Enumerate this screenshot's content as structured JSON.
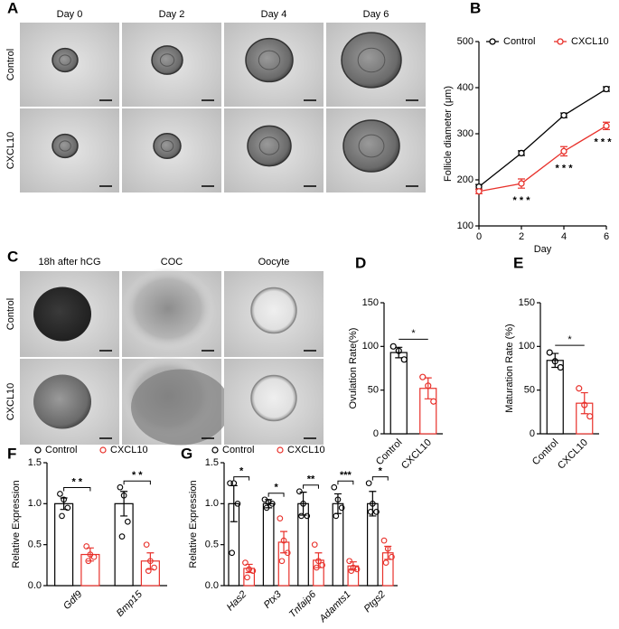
{
  "panel_labels": [
    "A",
    "B",
    "C",
    "D",
    "E",
    "F",
    "G"
  ],
  "image_panels": [
    {
      "columns": [
        "Day 0",
        "Day 2",
        "Day 4",
        "Day 6"
      ],
      "rows": [
        "Control",
        "CXCL10"
      ]
    },
    {
      "columns": [
        "18h after hCG",
        "COC",
        "Oocyte"
      ],
      "rows": [
        "Control",
        "CXCL10"
      ]
    }
  ],
  "chart_data": [
    {
      "type": "line",
      "x": [
        0,
        2,
        4,
        6
      ],
      "xlim": [
        0,
        6
      ],
      "xticks": [
        0,
        2,
        4,
        6
      ],
      "xlabel": "Day",
      "ylabel": "Follicle diameter (μm)",
      "ylim": [
        100,
        500
      ],
      "yticks": [
        100,
        200,
        300,
        400,
        500
      ],
      "legend": "top",
      "series": [
        {
          "name": "Control",
          "color": "#000000",
          "values": [
            185,
            258,
            340,
            397
          ],
          "errors": [
            5,
            5,
            5,
            5
          ]
        },
        {
          "name": "CXCL10",
          "color": "#e8312b",
          "values": [
            175,
            192,
            262,
            317
          ],
          "errors": [
            5,
            10,
            10,
            8
          ]
        }
      ],
      "annotations": [
        null,
        "* * *",
        "* * *",
        "* * *"
      ]
    },
    {
      "type": "bar",
      "categories": [
        "Control",
        "CXCL10"
      ],
      "ylabel": "Ovulation Rate(%)",
      "ylim": [
        0,
        150
      ],
      "yticks": [
        0,
        50,
        100,
        150
      ],
      "colors": [
        "#000000",
        "#e8312b"
      ],
      "values": [
        93,
        52
      ],
      "errors": [
        6,
        12
      ],
      "points": [
        [
          100,
          95,
          85
        ],
        [
          65,
          55,
          37
        ]
      ],
      "annotation": "*"
    },
    {
      "type": "bar",
      "categories": [
        "Control",
        "CXCL10"
      ],
      "ylabel": "Maturation Rate (%)",
      "ylim": [
        0,
        150
      ],
      "yticks": [
        0,
        50,
        100,
        150
      ],
      "colors": [
        "#000000",
        "#e8312b"
      ],
      "values": [
        84,
        35
      ],
      "errors": [
        8,
        12
      ],
      "points": [
        [
          93,
          83,
          76
        ],
        [
          52,
          33,
          20
        ]
      ],
      "annotation": "*"
    },
    {
      "type": "grouped_bar",
      "categories": [
        "Gdf9",
        "Bmp15"
      ],
      "ylabel": "Relative Expression",
      "ylim": [
        0,
        1.5
      ],
      "yticks": [
        {
          "value": 0,
          "label": "0.0"
        },
        {
          "value": 0.5,
          "label": "0.5"
        },
        {
          "value": 1,
          "label": "1.0"
        },
        {
          "value": 1.5,
          "label": "1.5"
        }
      ],
      "series": [
        {
          "name": "Control",
          "color": "#000000",
          "values": [
            1.0,
            1.0
          ],
          "errors": [
            0.07,
            0.15
          ],
          "points": [
            [
              1.12,
              1.05,
              0.95,
              0.85
            ],
            [
              1.2,
              1.1,
              0.78,
              0.6
            ]
          ]
        },
        {
          "name": "CXCL10",
          "color": "#e8312b",
          "values": [
            0.38,
            0.3
          ],
          "errors": [
            0.08,
            0.1
          ],
          "points": [
            [
              0.48,
              0.38,
              0.35,
              0.3
            ],
            [
              0.5,
              0.3,
              0.22,
              0.18
            ]
          ]
        }
      ],
      "annotations": [
        "* *",
        "* *"
      ]
    },
    {
      "type": "grouped_bar",
      "categories": [
        "Has2",
        "Ptx3",
        "Tnfaip6",
        "Adamts1",
        "Ptgs2"
      ],
      "ylabel": "Relative Expression",
      "ylim": [
        0,
        1.5
      ],
      "yticks": [
        {
          "value": 0,
          "label": "0.0"
        },
        {
          "value": 0.5,
          "label": "0.5"
        },
        {
          "value": 1,
          "label": "1.0"
        },
        {
          "value": 1.5,
          "label": "1.5"
        }
      ],
      "series": [
        {
          "name": "Control",
          "color": "#000000",
          "values": [
            1.0,
            1.0,
            1.0,
            1.0,
            1.0
          ],
          "errors": [
            0.22,
            0.05,
            0.14,
            0.12,
            0.15
          ],
          "points": [
            [
              1.25,
              1.25,
              1.0,
              0.4
            ],
            [
              1.05,
              1.02,
              1.0,
              0.95
            ],
            [
              1.15,
              1.0,
              0.85,
              0.85
            ],
            [
              1.2,
              1.05,
              0.95,
              0.85
            ],
            [
              1.25,
              1.0,
              0.9,
              0.9
            ]
          ]
        },
        {
          "name": "CXCL10",
          "color": "#e8312b",
          "values": [
            0.21,
            0.53,
            0.31,
            0.24,
            0.4
          ],
          "errors": [
            0.05,
            0.13,
            0.09,
            0.05,
            0.08
          ],
          "points": [
            [
              0.28,
              0.2,
              0.18,
              0.1
            ],
            [
              0.82,
              0.55,
              0.4,
              0.3
            ],
            [
              0.5,
              0.3,
              0.25,
              0.22
            ],
            [
              0.3,
              0.22,
              0.2,
              0.18
            ],
            [
              0.55,
              0.45,
              0.35,
              0.28
            ]
          ]
        }
      ],
      "annotations": [
        "*",
        "*",
        "**",
        "***",
        "*"
      ]
    }
  ]
}
